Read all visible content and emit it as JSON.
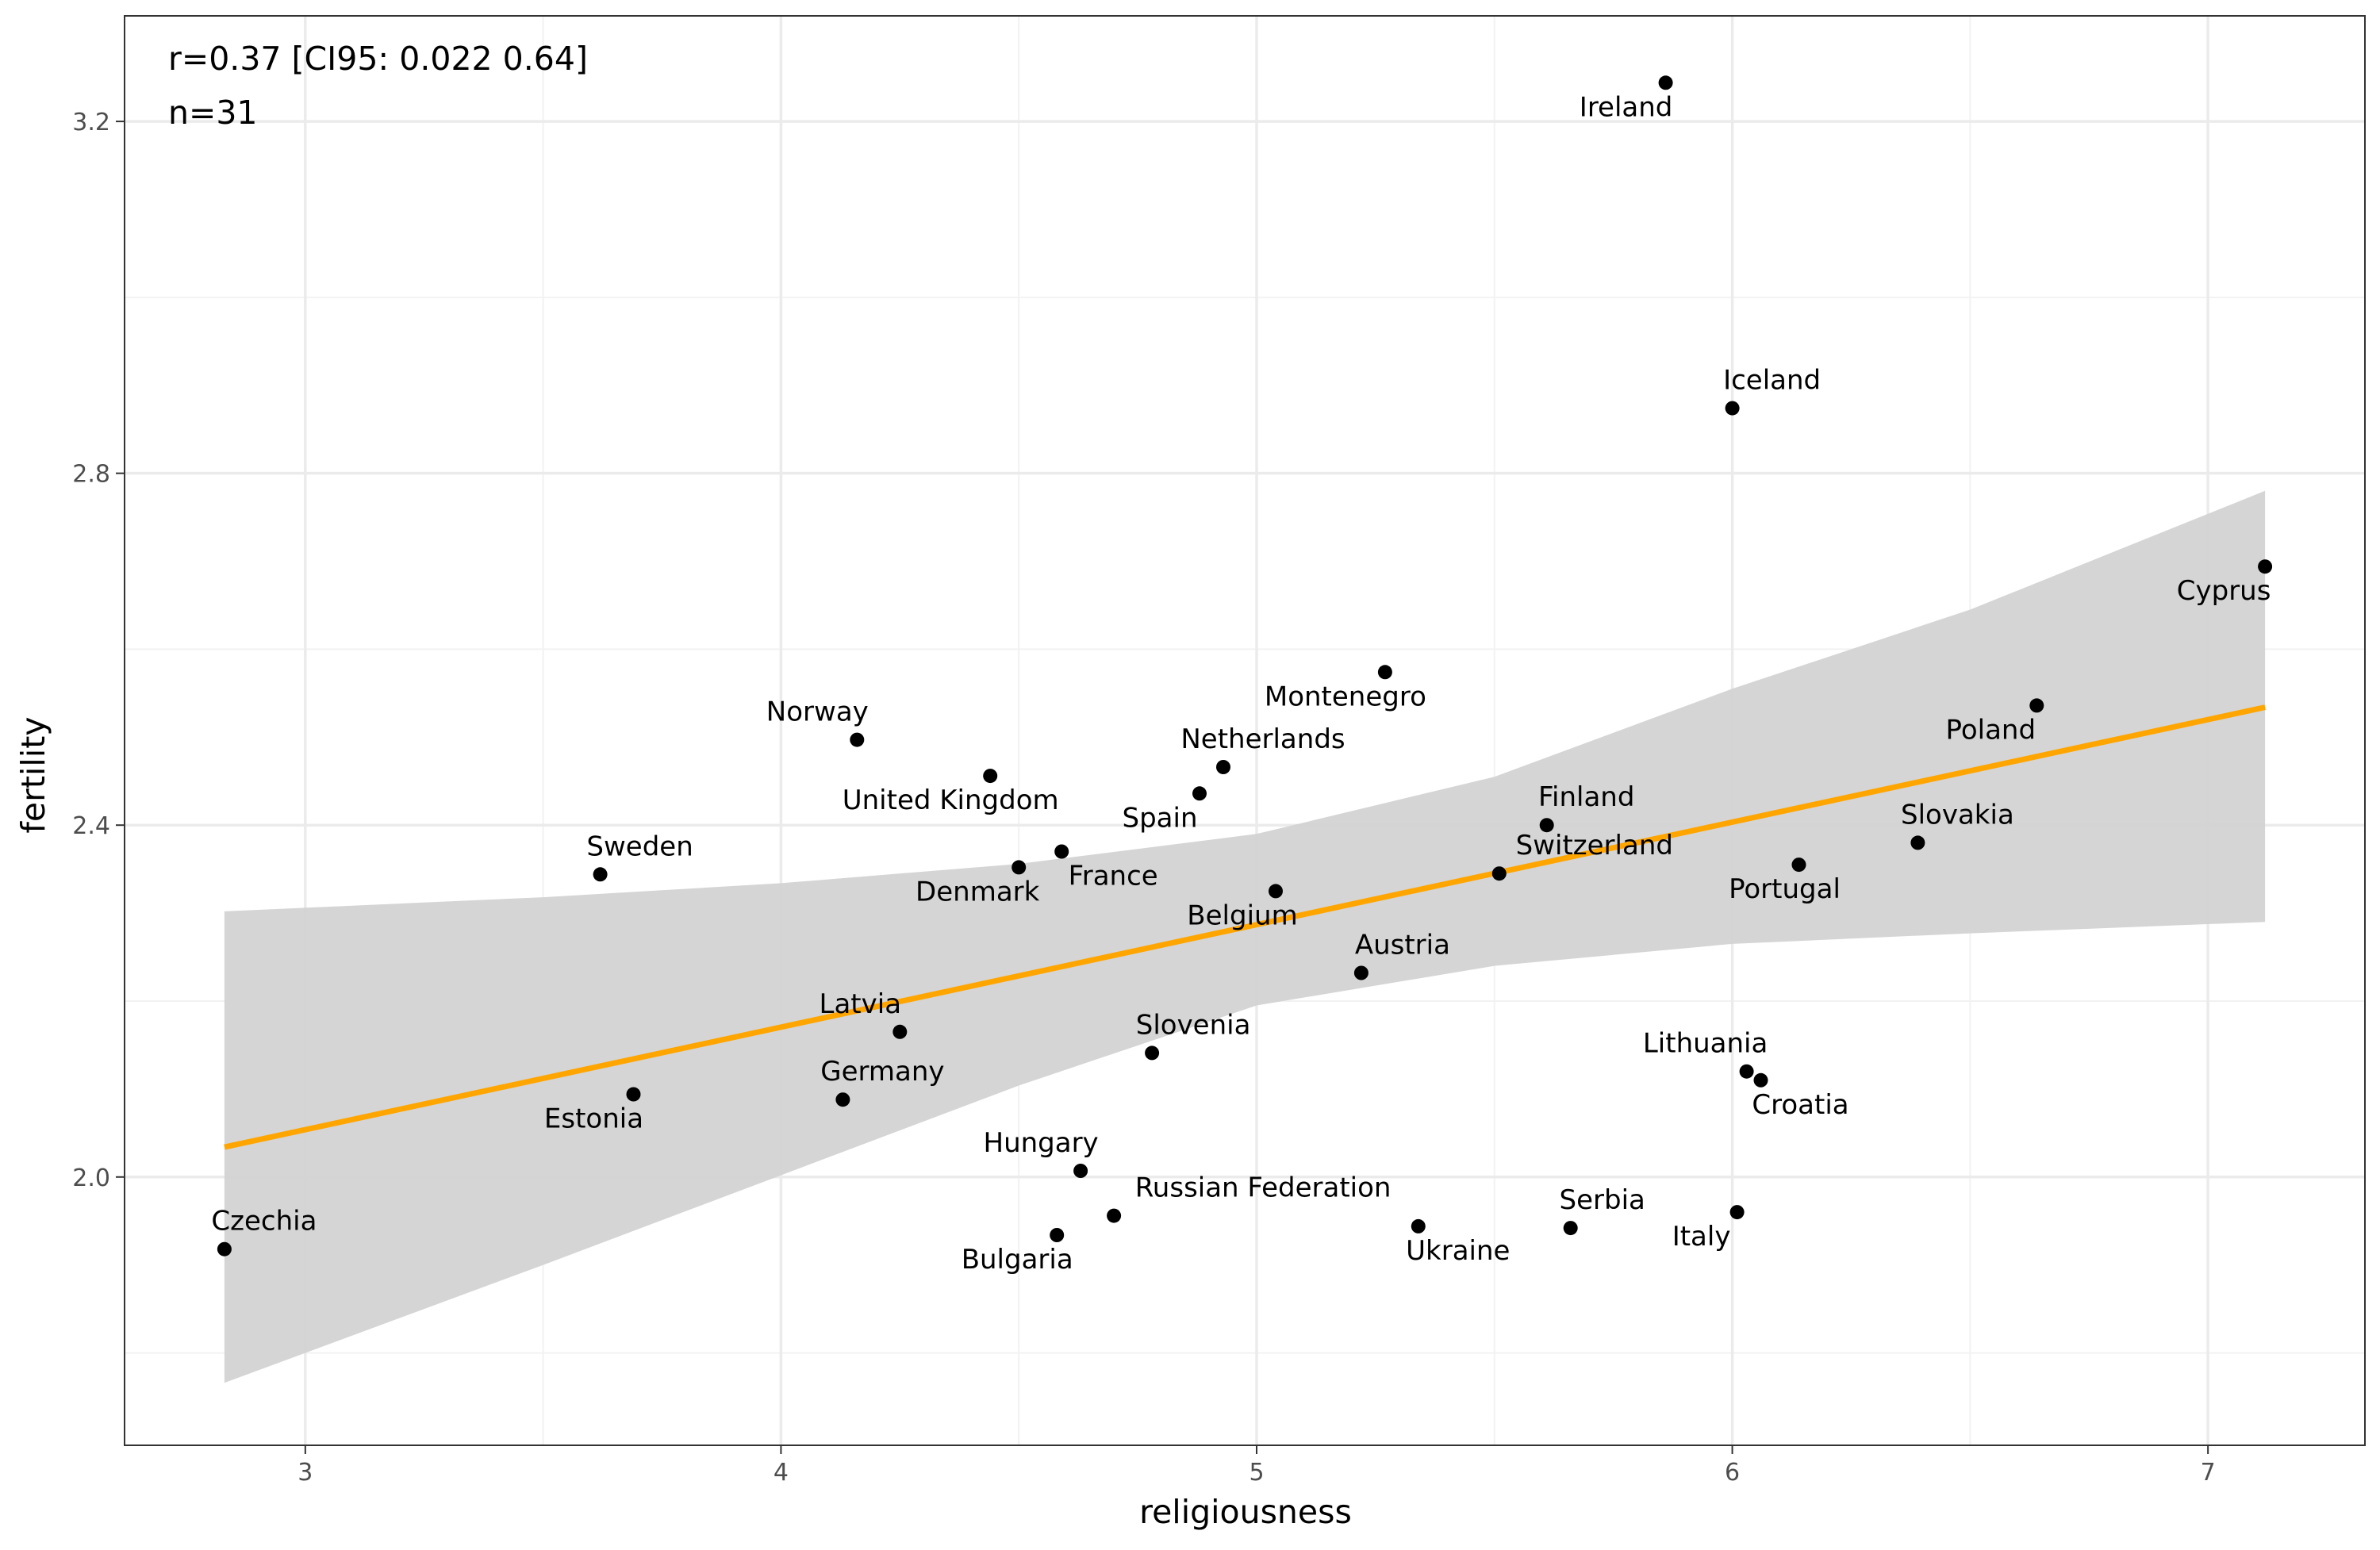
{
  "chart_data": {
    "type": "scatter",
    "xlabel": "religiousness",
    "ylabel": "fertility",
    "xlim": [
      2.62,
      7.33
    ],
    "ylim": [
      1.695,
      3.32
    ],
    "x_ticks": [
      3,
      4,
      5,
      6,
      7
    ],
    "x_tick_labels": [
      "3",
      "4",
      "5",
      "6",
      "7"
    ],
    "y_ticks": [
      2.0,
      2.4,
      2.8,
      3.2
    ],
    "y_tick_labels": [
      "2.0",
      "2.4",
      "2.8",
      "3.2"
    ],
    "grid": true,
    "annotations": [
      "r=0.37 [CI95: 0.022 0.64]",
      "n=31"
    ],
    "points": [
      {
        "label": "Ireland",
        "x": 5.86,
        "y": 3.244
      },
      {
        "label": "Iceland",
        "x": 6.0,
        "y": 2.874
      },
      {
        "label": "Cyprus",
        "x": 7.12,
        "y": 2.694
      },
      {
        "label": "Montenegro",
        "x": 5.27,
        "y": 2.574
      },
      {
        "label": "Poland",
        "x": 6.64,
        "y": 2.536
      },
      {
        "label": "Norway",
        "x": 4.16,
        "y": 2.497
      },
      {
        "label": "Netherlands",
        "x": 4.93,
        "y": 2.466
      },
      {
        "label": "United Kingdom",
        "x": 4.44,
        "y": 2.456
      },
      {
        "label": "Spain",
        "x": 4.88,
        "y": 2.436
      },
      {
        "label": "Finland",
        "x": 5.61,
        "y": 2.4
      },
      {
        "label": "Slovakia",
        "x": 6.39,
        "y": 2.38
      },
      {
        "label": "France",
        "x": 4.59,
        "y": 2.37
      },
      {
        "label": "Portugal",
        "x": 6.14,
        "y": 2.355
      },
      {
        "label": "Denmark",
        "x": 4.5,
        "y": 2.352
      },
      {
        "label": "Switzerland",
        "x": 5.51,
        "y": 2.345
      },
      {
        "label": "Sweden",
        "x": 3.62,
        "y": 2.344
      },
      {
        "label": "Belgium",
        "x": 5.04,
        "y": 2.325
      },
      {
        "label": "Austria",
        "x": 5.22,
        "y": 2.232
      },
      {
        "label": "Latvia",
        "x": 4.25,
        "y": 2.165
      },
      {
        "label": "Slovenia",
        "x": 4.78,
        "y": 2.141
      },
      {
        "label": "Lithuania",
        "x": 6.03,
        "y": 2.12
      },
      {
        "label": "Croatia",
        "x": 6.06,
        "y": 2.11
      },
      {
        "label": "Estonia",
        "x": 3.69,
        "y": 2.094
      },
      {
        "label": "Germany",
        "x": 4.13,
        "y": 2.088
      },
      {
        "label": "Hungary",
        "x": 4.63,
        "y": 2.007
      },
      {
        "label": "Italy",
        "x": 6.01,
        "y": 1.96
      },
      {
        "label": "Russian Federation",
        "x": 4.7,
        "y": 1.956
      },
      {
        "label": "Ukraine",
        "x": 5.34,
        "y": 1.944
      },
      {
        "label": "Serbia",
        "x": 5.66,
        "y": 1.942
      },
      {
        "label": "Bulgaria",
        "x": 4.58,
        "y": 1.934
      },
      {
        "label": "Czechia",
        "x": 2.83,
        "y": 1.918
      }
    ],
    "trend_line": {
      "color": "#FFA500",
      "x": [
        2.83,
        7.12
      ],
      "y": [
        2.034,
        2.534
      ]
    },
    "confidence_band": {
      "color": "#D3D3D3",
      "x": [
        2.83,
        3.5,
        4.0,
        4.5,
        5.0,
        5.5,
        6.0,
        6.5,
        7.12
      ],
      "upper": [
        2.302,
        2.318,
        2.334,
        2.356,
        2.39,
        2.455,
        2.555,
        2.645,
        2.78
      ],
      "lower": [
        1.766,
        1.9,
        2.002,
        2.104,
        2.195,
        2.24,
        2.265,
        2.277,
        2.29
      ]
    }
  }
}
